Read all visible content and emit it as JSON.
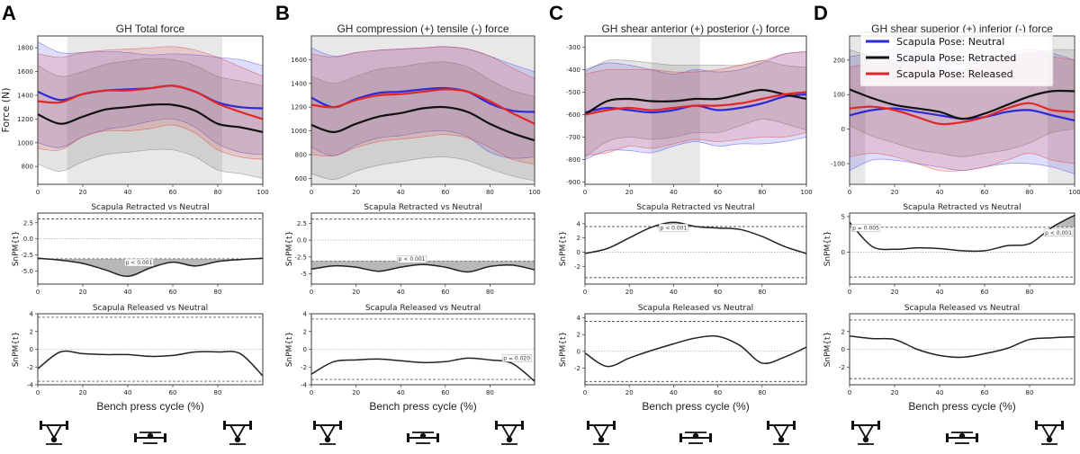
{
  "figure": {
    "xlabel": "Bench press cycle (%)",
    "legend": {
      "placement": "top-right of panel D",
      "entries": [
        {
          "label": "Scapula Pose: Neutral",
          "color": "#2b2bd9"
        },
        {
          "label": "Scapula Pose: Retracted",
          "color": "#111111"
        },
        {
          "label": "Scapula Pose: Released",
          "color": "#e02828"
        }
      ]
    },
    "icons": [
      "barbell-top-icon",
      "barbell-bottom-icon",
      "barbell-top-icon"
    ]
  },
  "chart_data": [
    {
      "type": "line",
      "panel": "A",
      "title": "GH Total force",
      "ylabel": "Force (N)",
      "x": [
        0,
        10,
        20,
        30,
        40,
        50,
        60,
        70,
        80,
        90,
        100
      ],
      "xlim": [
        0,
        100
      ],
      "ylim": [
        650,
        1900
      ],
      "xticks": [
        "0",
        "20",
        "40",
        "60",
        "80",
        "100"
      ],
      "yticks": [
        "800",
        "1000",
        "1200",
        "1400",
        "1600",
        "1800"
      ],
      "shaded_region": [
        13,
        82
      ],
      "series": [
        {
          "name": "Scapula Pose: Neutral",
          "mean": [
            1430,
            1360,
            1410,
            1440,
            1450,
            1460,
            1480,
            1430,
            1340,
            1300,
            1290
          ],
          "upper": [
            1850,
            1760,
            1760,
            1770,
            1760,
            1740,
            1750,
            1740,
            1720,
            1700,
            1650
          ],
          "lower": [
            1000,
            960,
            1050,
            1110,
            1140,
            1180,
            1200,
            1130,
            990,
            920,
            900
          ]
        },
        {
          "name": "Scapula Pose: Retracted",
          "mean": [
            1240,
            1160,
            1220,
            1280,
            1300,
            1320,
            1320,
            1270,
            1160,
            1130,
            1090
          ],
          "upper": [
            1650,
            1560,
            1600,
            1660,
            1690,
            1710,
            1700,
            1650,
            1560,
            1520,
            1480
          ],
          "lower": [
            820,
            760,
            840,
            900,
            920,
            940,
            940,
            880,
            770,
            740,
            700
          ]
        },
        {
          "name": "Scapula Pose: Released",
          "mean": [
            1350,
            1340,
            1410,
            1440,
            1440,
            1460,
            1480,
            1430,
            1330,
            1260,
            1200
          ],
          "upper": [
            1750,
            1720,
            1760,
            1780,
            1790,
            1800,
            1810,
            1780,
            1720,
            1640,
            1560
          ],
          "lower": [
            950,
            940,
            1050,
            1100,
            1100,
            1120,
            1150,
            1080,
            940,
            880,
            860
          ]
        }
      ],
      "spm": [
        {
          "title": "Scapula Retracted vs Neutral",
          "ylabel": "SnPM{t}",
          "ylim": [
            -7,
            4
          ],
          "threshold": 3.1,
          "yticks": [
            "-5.0",
            "-2.5",
            "0.0",
            "2.5"
          ],
          "xticks": [
            "0",
            "20",
            "40",
            "60",
            "80"
          ],
          "x": [
            0,
            10,
            20,
            30,
            40,
            50,
            60,
            70,
            80,
            90,
            100
          ],
          "t": [
            -3.0,
            -3.3,
            -3.8,
            -4.8,
            -5.8,
            -4.5,
            -3.6,
            -4.2,
            -3.5,
            -3.2,
            -3.0
          ],
          "p_label": "p < 0.001",
          "p_label_x": 45
        },
        {
          "title": "Scapula Released vs Neutral",
          "ylabel": "SnPM{t}",
          "ylim": [
            -4,
            4
          ],
          "threshold": 3.6,
          "yticks": [
            "-4",
            "-2",
            "0",
            "2",
            "4"
          ],
          "xticks": [
            "0",
            "20",
            "40",
            "60",
            "80"
          ],
          "x": [
            0,
            10,
            20,
            30,
            40,
            50,
            60,
            70,
            80,
            90,
            100
          ],
          "t": [
            -2.2,
            -0.3,
            -0.5,
            -0.6,
            -0.6,
            -0.8,
            -0.7,
            -0.3,
            -0.3,
            -0.5,
            -3.0
          ]
        }
      ]
    },
    {
      "type": "line",
      "panel": "B",
      "title": "GH compression (+) tensile (-) force",
      "ylabel": "",
      "x": [
        0,
        10,
        20,
        30,
        40,
        50,
        60,
        70,
        80,
        90,
        100
      ],
      "xlim": [
        0,
        100
      ],
      "ylim": [
        550,
        1800
      ],
      "xticks": [
        "0",
        "20",
        "40",
        "60",
        "80",
        "100"
      ],
      "yticks": [
        "600",
        "800",
        "1000",
        "1200",
        "1400",
        "1600"
      ],
      "shaded_region": [
        0,
        100
      ],
      "series": [
        {
          "name": "Scapula Pose: Neutral",
          "mean": [
            1280,
            1200,
            1270,
            1320,
            1330,
            1350,
            1360,
            1330,
            1230,
            1170,
            1160
          ],
          "upper": [
            1700,
            1630,
            1660,
            1680,
            1690,
            1700,
            1710,
            1690,
            1630,
            1560,
            1500
          ],
          "lower": [
            860,
            790,
            880,
            940,
            960,
            990,
            1000,
            950,
            820,
            770,
            780
          ]
        },
        {
          "name": "Scapula Pose: Retracted",
          "mean": [
            1050,
            990,
            1060,
            1120,
            1150,
            1190,
            1200,
            1160,
            1060,
            980,
            920
          ],
          "upper": [
            1460,
            1400,
            1460,
            1520,
            1540,
            1570,
            1580,
            1540,
            1430,
            1340,
            1290
          ],
          "lower": [
            640,
            590,
            660,
            710,
            740,
            770,
            780,
            750,
            680,
            620,
            580
          ]
        },
        {
          "name": "Scapula Pose: Released",
          "mean": [
            1220,
            1200,
            1260,
            1300,
            1310,
            1330,
            1350,
            1330,
            1250,
            1150,
            1060
          ],
          "upper": [
            1650,
            1620,
            1660,
            1680,
            1690,
            1700,
            1710,
            1690,
            1630,
            1530,
            1440
          ],
          "lower": [
            800,
            790,
            860,
            910,
            930,
            950,
            970,
            940,
            860,
            760,
            720
          ]
        }
      ],
      "spm": [
        {
          "title": "Scapula Retracted vs Neutral",
          "ylabel": "SnPM{t}",
          "ylim": [
            -6.5,
            4
          ],
          "threshold": 3.1,
          "yticks": [
            "-5",
            "-2.5",
            "0.0",
            "2.5"
          ],
          "xticks": [
            "0",
            "20",
            "40",
            "60",
            "80"
          ],
          "x": [
            0,
            10,
            20,
            30,
            40,
            50,
            60,
            70,
            80,
            90,
            100
          ],
          "t": [
            -4.3,
            -3.8,
            -4.0,
            -4.6,
            -4.0,
            -3.6,
            -4.0,
            -4.7,
            -3.9,
            -3.7,
            -4.4
          ],
          "p_label": "p < 0.001",
          "p_label_x": 45
        },
        {
          "title": "Scapula Released vs Neutral",
          "ylabel": "SnPM{t}",
          "ylim": [
            -4,
            4
          ],
          "threshold": 3.4,
          "yticks": [
            "-4",
            "-2",
            "0",
            "2",
            "4"
          ],
          "xticks": [
            "0",
            "20",
            "40",
            "60",
            "80"
          ],
          "x": [
            0,
            10,
            20,
            30,
            40,
            50,
            60,
            70,
            80,
            90,
            100
          ],
          "t": [
            -2.8,
            -1.4,
            -1.2,
            -1.1,
            -1.3,
            -1.5,
            -1.4,
            -1.0,
            -1.2,
            -1.6,
            -3.6
          ],
          "p_label": "p = 0.020",
          "p_label_x": 92
        }
      ]
    },
    {
      "type": "line",
      "panel": "C",
      "title": "GH shear anterior (+) posterior (-) force",
      "ylabel": "",
      "x": [
        0,
        10,
        20,
        30,
        40,
        50,
        60,
        70,
        80,
        90,
        100
      ],
      "xlim": [
        0,
        100
      ],
      "ylim": [
        -910,
        -250
      ],
      "xticks": [
        "0",
        "20",
        "40",
        "60",
        "80",
        "100"
      ],
      "yticks": [
        "-900",
        "-800",
        "-700",
        "-600",
        "-500",
        "-400",
        "-300"
      ],
      "shaded_region": [
        30,
        52
      ],
      "series": [
        {
          "name": "Scapula Pose: Neutral",
          "mean": [
            -590,
            -570,
            -580,
            -590,
            -580,
            -560,
            -580,
            -570,
            -550,
            -520,
            -510
          ],
          "upper": [
            -400,
            -370,
            -380,
            -400,
            -420,
            -400,
            -410,
            -400,
            -370,
            -330,
            -320
          ],
          "lower": [
            -800,
            -760,
            -760,
            -770,
            -740,
            -720,
            -740,
            -730,
            -730,
            -720,
            -700
          ]
        },
        {
          "name": "Scapula Pose: Retracted",
          "mean": [
            -600,
            -540,
            -530,
            -540,
            -540,
            -530,
            -530,
            -510,
            -490,
            -510,
            -530
          ],
          "upper": [
            -410,
            -360,
            -360,
            -370,
            -380,
            -380,
            -380,
            -380,
            -360,
            -380,
            -390
          ],
          "lower": [
            -790,
            -720,
            -700,
            -710,
            -700,
            -680,
            -680,
            -650,
            -620,
            -640,
            -670
          ]
        },
        {
          "name": "Scapula Pose: Released",
          "mean": [
            -600,
            -580,
            -570,
            -580,
            -570,
            -560,
            -560,
            -550,
            -530,
            -510,
            -500
          ],
          "upper": [
            -420,
            -400,
            -400,
            -400,
            -410,
            -410,
            -400,
            -380,
            -360,
            -330,
            -320
          ],
          "lower": [
            -780,
            -770,
            -740,
            -750,
            -730,
            -710,
            -720,
            -710,
            -700,
            -700,
            -680
          ]
        }
      ],
      "spm": [
        {
          "title": "Scapula Retracted vs Neutral",
          "ylabel": "SnPM{t}",
          "ylim": [
            -4.5,
            5.5
          ],
          "threshold": 3.6,
          "yticks": [
            "-2",
            "0",
            "2",
            "4"
          ],
          "xticks": [
            "0",
            "20",
            "40",
            "60",
            "80"
          ],
          "x": [
            0,
            10,
            20,
            30,
            40,
            50,
            60,
            70,
            80,
            90,
            100
          ],
          "t": [
            -0.2,
            0.5,
            2.0,
            3.5,
            4.2,
            3.6,
            3.4,
            3.2,
            2.2,
            0.8,
            -0.2
          ],
          "p_label": "p < 0.001",
          "p_label_x": 40
        },
        {
          "title": "Scapula Released vs Neutral",
          "ylabel": "SnPM{t}",
          "ylim": [
            -4,
            4.5
          ],
          "threshold": 3.6,
          "yticks": [
            "-2",
            "0",
            "2",
            "4"
          ],
          "xticks": [
            "0",
            "20",
            "40",
            "60",
            "80"
          ],
          "x": [
            0,
            10,
            20,
            30,
            40,
            50,
            60,
            70,
            80,
            90,
            100
          ],
          "t": [
            -0.2,
            -1.8,
            -0.8,
            0.1,
            0.9,
            1.6,
            1.8,
            0.7,
            -1.4,
            -0.7,
            0.5
          ]
        }
      ]
    },
    {
      "type": "line",
      "panel": "D",
      "title": "GH shear superior (+) inferior (-) force",
      "ylabel": "",
      "x": [
        0,
        10,
        20,
        30,
        40,
        50,
        60,
        70,
        80,
        90,
        100
      ],
      "xlim": [
        0,
        100
      ],
      "ylim": [
        -160,
        270
      ],
      "xticks": [
        "0",
        "20",
        "40",
        "60",
        "80",
        "100"
      ],
      "yticks": [
        "-100",
        "0",
        "100",
        "200"
      ],
      "shaded_regions": [
        [
          0,
          7
        ],
        [
          88,
          100
        ]
      ],
      "series": [
        {
          "name": "Scapula Pose: Neutral",
          "mean": [
            40,
            55,
            60,
            50,
            40,
            30,
            35,
            50,
            55,
            40,
            25
          ],
          "upper": [
            210,
            220,
            230,
            220,
            200,
            190,
            200,
            220,
            230,
            220,
            200
          ],
          "lower": [
            -120,
            -90,
            -90,
            -100,
            -110,
            -120,
            -110,
            -100,
            -100,
            -110,
            -130
          ]
        },
        {
          "name": "Scapula Pose: Retracted",
          "mean": [
            115,
            90,
            70,
            60,
            50,
            30,
            45,
            70,
            95,
            110,
            110
          ],
          "upper": [
            230,
            210,
            200,
            190,
            180,
            170,
            180,
            200,
            220,
            230,
            230
          ],
          "lower": [
            10,
            -20,
            -40,
            -60,
            -70,
            -80,
            -70,
            -60,
            -40,
            -10,
            0
          ]
        },
        {
          "name": "Scapula Pose: Released",
          "mean": [
            60,
            65,
            55,
            35,
            15,
            20,
            35,
            60,
            75,
            55,
            50
          ],
          "upper": [
            180,
            190,
            190,
            180,
            170,
            170,
            190,
            210,
            220,
            210,
            200
          ],
          "lower": [
            -80,
            -70,
            -80,
            -100,
            -120,
            -120,
            -110,
            -90,
            -70,
            -90,
            -100
          ]
        }
      ],
      "spm": [
        {
          "title": "Scapula Retracted vs Neutral",
          "ylabel": "SnPM{t}",
          "ylim": [
            -4.5,
            5.5
          ],
          "threshold": 3.5,
          "yticks": [
            "0",
            "5"
          ],
          "xticks": [
            "0",
            "20",
            "40",
            "60",
            "80"
          ],
          "x": [
            0,
            10,
            20,
            30,
            40,
            50,
            60,
            70,
            80,
            90,
            100
          ],
          "t": [
            4.2,
            0.8,
            0.4,
            0.6,
            0.5,
            0.2,
            0.2,
            0.9,
            1.2,
            3.5,
            5.2
          ],
          "p_labels": [
            {
              "text": "p = 0.005",
              "x": 3
            },
            {
              "text": "p < 0.001",
              "x": 94
            }
          ]
        },
        {
          "title": "Scapula Released vs Neutral",
          "ylabel": "SnPM{t}",
          "ylim": [
            -4,
            4
          ],
          "threshold": 3.3,
          "yticks": [
            "-2",
            "0",
            "2"
          ],
          "xticks": [
            "0",
            "20",
            "40",
            "60",
            "80"
          ],
          "x": [
            0,
            10,
            20,
            30,
            40,
            50,
            60,
            70,
            80,
            90,
            100
          ],
          "t": [
            1.5,
            1.2,
            1.1,
            0.0,
            -0.7,
            -0.9,
            -0.5,
            0.1,
            1.1,
            1.3,
            1.4
          ]
        }
      ]
    }
  ]
}
